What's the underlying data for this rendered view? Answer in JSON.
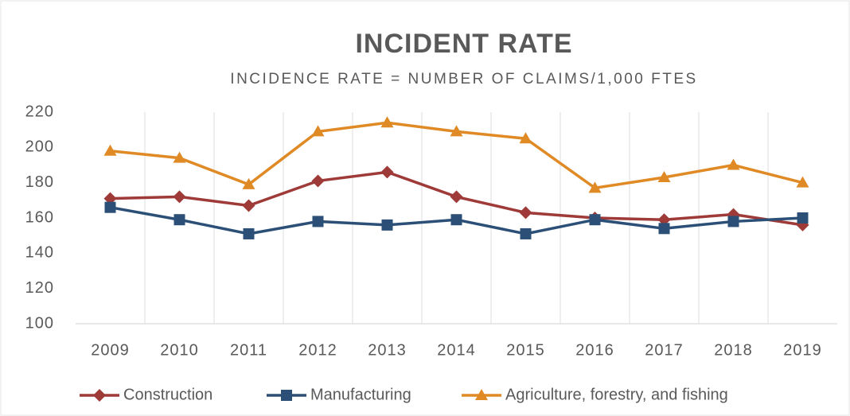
{
  "chart_data": {
    "type": "line",
    "title": "INCIDENT RATE",
    "subtitle": "INCIDENCE RATE = NUMBER OF CLAIMS/1,000 FTES",
    "categories": [
      "2009",
      "2010",
      "2011",
      "2012",
      "2013",
      "2014",
      "2015",
      "2016",
      "2017",
      "2018",
      "2019"
    ],
    "series": [
      {
        "name": "Construction",
        "color": "#9e3a38",
        "marker": "diamond",
        "values": [
          171,
          172,
          167,
          181,
          186,
          172,
          163,
          160,
          159,
          162,
          156
        ]
      },
      {
        "name": "Manufacturing",
        "color": "#2b4f76",
        "marker": "square",
        "values": [
          166,
          159,
          151,
          158,
          156,
          159,
          151,
          159,
          154,
          158,
          160
        ]
      },
      {
        "name": "Agriculture, forestry, and fishing",
        "color": "#e08a26",
        "marker": "triangle",
        "values": [
          198,
          194,
          179,
          209,
          214,
          209,
          205,
          177,
          183,
          190,
          180
        ]
      }
    ],
    "ylim": [
      100,
      220
    ],
    "yticks": [
      100,
      120,
      140,
      160,
      180,
      200,
      220
    ],
    "grid": true,
    "legend": "bottom"
  }
}
